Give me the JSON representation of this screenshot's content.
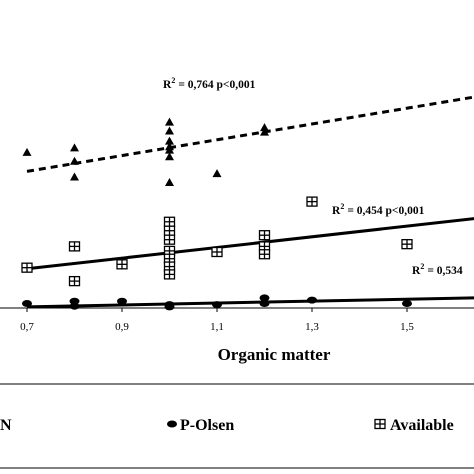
{
  "chart_data": {
    "type": "scatter",
    "xlabel": "Organic matter",
    "ylabel": "",
    "xlim": [
      0.65,
      1.75
    ],
    "ylim": [
      0,
      11
    ],
    "x_ticks": [
      "0,7",
      "0,9",
      "1,1",
      "1,3",
      "1,5"
    ],
    "x_tick_values": [
      0.7,
      0.9,
      1.1,
      1.3,
      1.5
    ],
    "series": [
      {
        "name": "N",
        "marker": "triangle",
        "color": "#000000",
        "line_style": "dashed",
        "points": [
          {
            "x": 0.7,
            "y": 6.95
          },
          {
            "x": 0.8,
            "y": 7.15
          },
          {
            "x": 0.8,
            "y": 6.55
          },
          {
            "x": 0.8,
            "y": 5.85
          },
          {
            "x": 1.0,
            "y": 8.3
          },
          {
            "x": 1.0,
            "y": 7.9
          },
          {
            "x": 1.0,
            "y": 7.45
          },
          {
            "x": 1.0,
            "y": 7.2
          },
          {
            "x": 1.0,
            "y": 7.05
          },
          {
            "x": 1.0,
            "y": 6.75
          },
          {
            "x": 1.0,
            "y": 5.6
          },
          {
            "x": 1.1,
            "y": 6.0
          },
          {
            "x": 1.2,
            "y": 8.05
          },
          {
            "x": 1.2,
            "y": 7.85
          }
        ],
        "fit": {
          "x": [
            0.7,
            1.75
          ],
          "y": [
            6.1,
            9.8
          ]
        },
        "annotation": {
          "r2_label": "R",
          "superscript": "2",
          "text": "= 0,764  p<0,001"
        }
      },
      {
        "name": "P-Olsen",
        "marker": "circle",
        "color": "#000000",
        "line_style": "solid",
        "points": [
          {
            "x": 0.7,
            "y": 0.2
          },
          {
            "x": 0.8,
            "y": 0.3
          },
          {
            "x": 0.8,
            "y": 0.08
          },
          {
            "x": 0.9,
            "y": 0.3
          },
          {
            "x": 1.0,
            "y": 0.15
          },
          {
            "x": 1.0,
            "y": 0.05
          },
          {
            "x": 1.1,
            "y": 0.15
          },
          {
            "x": 1.2,
            "y": 0.45
          },
          {
            "x": 1.2,
            "y": 0.2
          },
          {
            "x": 1.3,
            "y": 0.35
          },
          {
            "x": 1.5,
            "y": 0.2
          },
          {
            "x": 1.7,
            "y": 0.45
          }
        ],
        "fit": {
          "x": [
            0.7,
            1.75
          ],
          "y": [
            0.05,
            0.5
          ]
        },
        "annotation": {
          "r2_label": "R",
          "superscript": "2",
          "text": "= 0,534"
        }
      },
      {
        "name": "Available",
        "marker": "plus-square",
        "color": "#000000",
        "line_style": "solid",
        "points": [
          {
            "x": 0.7,
            "y": 1.8
          },
          {
            "x": 0.8,
            "y": 2.75
          },
          {
            "x": 0.8,
            "y": 1.2
          },
          {
            "x": 0.9,
            "y": 1.95
          },
          {
            "x": 1.0,
            "y": 3.85
          },
          {
            "x": 1.0,
            "y": 3.45
          },
          {
            "x": 1.0,
            "y": 3.05
          },
          {
            "x": 1.0,
            "y": 2.55
          },
          {
            "x": 1.0,
            "y": 2.2
          },
          {
            "x": 1.0,
            "y": 1.85
          },
          {
            "x": 1.0,
            "y": 1.5
          },
          {
            "x": 1.1,
            "y": 2.5
          },
          {
            "x": 1.2,
            "y": 3.25
          },
          {
            "x": 1.2,
            "y": 2.75
          },
          {
            "x": 1.2,
            "y": 2.4
          },
          {
            "x": 1.3,
            "y": 4.75
          },
          {
            "x": 1.5,
            "y": 2.85
          },
          {
            "x": 1.7,
            "y": 4.05
          }
        ],
        "fit": {
          "x": [
            0.7,
            1.75
          ],
          "y": [
            1.75,
            4.25
          ]
        },
        "annotation": {
          "r2_label": "R",
          "superscript": "2",
          "text": "= 0,454  p<0,001"
        }
      }
    ],
    "legend": {
      "position": "bottom",
      "entries": [
        {
          "label": "N",
          "marker": "triangle"
        },
        {
          "label": "P-Olsen",
          "marker": "circle"
        },
        {
          "label": "Available",
          "marker": "plus-square"
        }
      ]
    },
    "grid": false
  }
}
